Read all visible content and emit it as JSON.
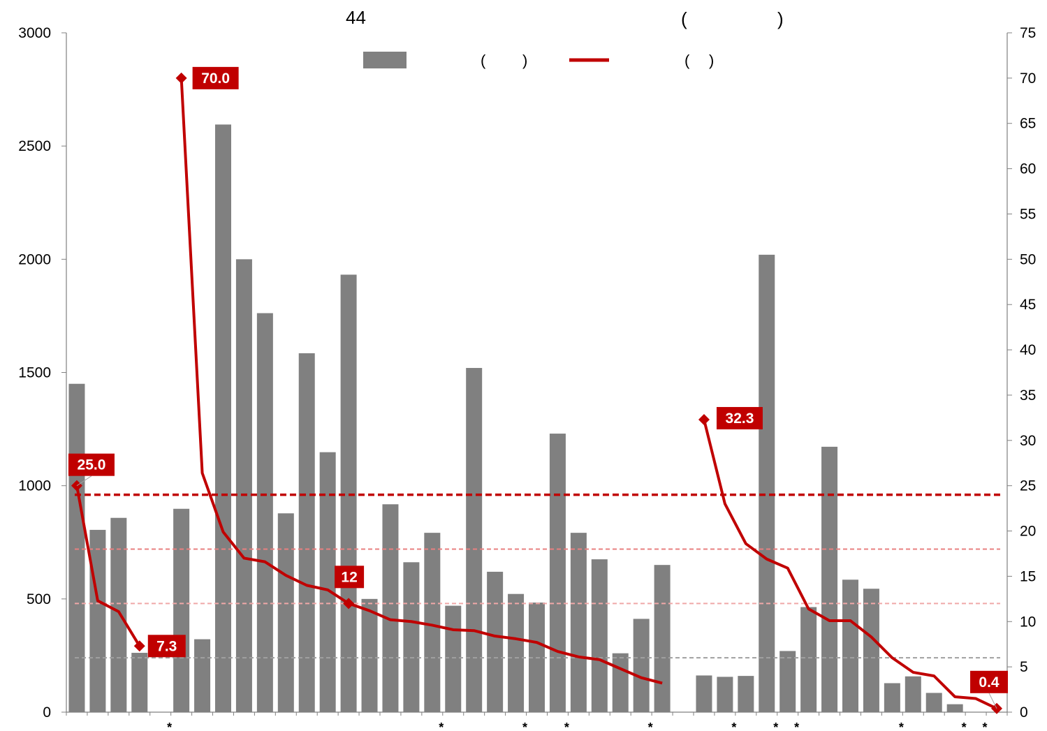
{
  "chart_data": {
    "type": "bar",
    "title": {
      "count": "44",
      "paren_open": "(",
      "paren_close": ")"
    },
    "categories": [
      "",
      "",
      "",
      "",
      "",
      "",
      "",
      "",
      "",
      "",
      "",
      "",
      "",
      "",
      "",
      "",
      "",
      "",
      "",
      "",
      "",
      "",
      "",
      "",
      "",
      "",
      "",
      "",
      "",
      "",
      "",
      "",
      "",
      "",
      "",
      "",
      "",
      "",
      "",
      "",
      "",
      "",
      "",
      "",
      ""
    ],
    "starred": [
      5,
      18,
      22,
      24,
      28,
      32,
      34,
      35,
      40,
      43,
      44
    ],
    "bars": {
      "axis": "left",
      "color": "#808080",
      "values": [
        1450,
        805,
        858,
        262,
        null,
        898,
        322,
        2595,
        2000,
        1762,
        878,
        1585,
        1148,
        1932,
        500,
        918,
        662,
        792,
        470,
        1520,
        620,
        522,
        484,
        1230,
        792,
        675,
        260,
        412,
        650,
        null,
        162,
        156,
        160,
        2020,
        270,
        464,
        1172,
        585,
        545,
        128,
        158,
        85,
        35,
        null,
        null
      ]
    },
    "line": {
      "axis": "right",
      "color": "#c00000",
      "values": [
        25.0,
        12.3,
        11.1,
        7.3,
        null,
        70.0,
        26.4,
        19.9,
        17.0,
        16.6,
        15.1,
        14.0,
        13.5,
        12.0,
        11.2,
        10.2,
        10.0,
        9.6,
        9.1,
        9.0,
        8.4,
        8.1,
        7.7,
        6.7,
        6.1,
        5.8,
        4.8,
        3.8,
        3.2,
        null,
        32.3,
        23.0,
        18.6,
        16.9,
        15.9,
        11.4,
        10.1,
        10.1,
        8.3,
        6.0,
        4.4,
        4.0,
        1.7,
        1.5,
        0.4
      ]
    },
    "data_labels": [
      {
        "index": 0,
        "text": "25.0"
      },
      {
        "index": 3,
        "text": "7.3"
      },
      {
        "index": 5,
        "text": "70.0"
      },
      {
        "index": 13,
        "text": "12"
      },
      {
        "index": 30,
        "text": "32.3"
      },
      {
        "index": 44,
        "text": "0.4"
      }
    ],
    "reference_lines": [
      {
        "axis": "right",
        "value": 24,
        "color": "#c00000",
        "style": "dashed-bold"
      },
      {
        "axis": "right",
        "value": 18,
        "color": "#e88080",
        "style": "dashed"
      },
      {
        "axis": "right",
        "value": 12,
        "color": "#f0a8a8",
        "style": "dashed"
      },
      {
        "axis": "right",
        "value": 6,
        "color": "#a0a0a0",
        "style": "dashed"
      }
    ],
    "y_left": {
      "min": 0,
      "max": 3000,
      "ticks": [
        "0",
        "500",
        "1000",
        "1500",
        "2000",
        "2500",
        "3000"
      ]
    },
    "y_right": {
      "min": 0,
      "max": 75,
      "ticks": [
        "0",
        "5",
        "10",
        "15",
        "20",
        "25",
        "30",
        "35",
        "40",
        "45",
        "50",
        "55",
        "60",
        "65",
        "70",
        "75"
      ]
    },
    "legend": {
      "position": "top-center",
      "bar_label": {
        "open": "(",
        "close": ")"
      },
      "line_label": {
        "open": "(",
        "close": ")"
      }
    },
    "star_symbol": "*",
    "grid": false
  }
}
